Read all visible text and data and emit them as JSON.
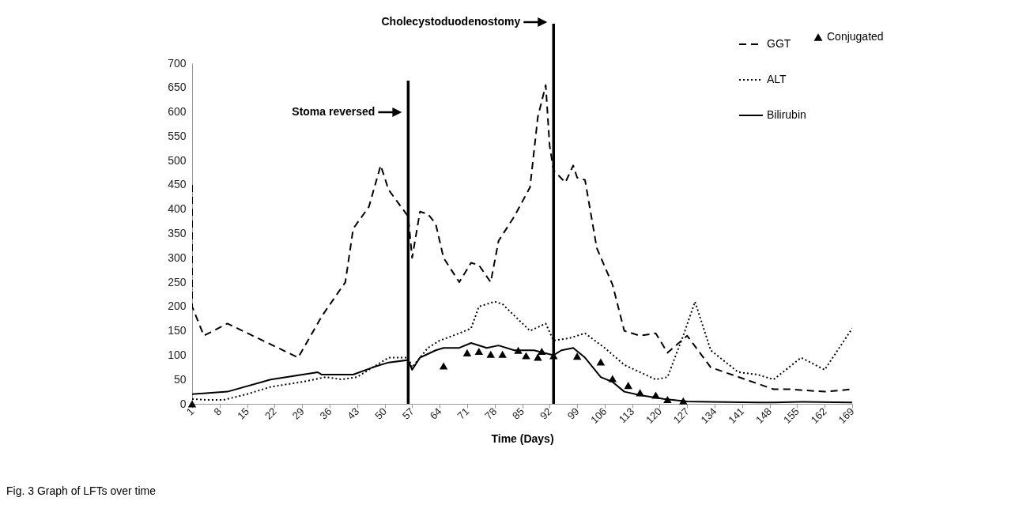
{
  "chart_data": {
    "type": "line",
    "xlabel": "Time (Days)",
    "xlim": [
      1,
      169
    ],
    "xticks": [
      1,
      8,
      15,
      22,
      29,
      36,
      43,
      50,
      57,
      64,
      71,
      78,
      85,
      92,
      99,
      106,
      113,
      120,
      127,
      134,
      141,
      148,
      155,
      162,
      169
    ],
    "ylim": [
      0,
      700
    ],
    "yticks": [
      0,
      50,
      100,
      150,
      200,
      250,
      300,
      350,
      400,
      450,
      500,
      550,
      600,
      650,
      700
    ],
    "grid": false,
    "legend": "top right",
    "series": [
      {
        "name": "GGT",
        "color": "#000000",
        "line_style": "dashed",
        "marker": "none",
        "x": [
          1,
          1,
          4,
          10,
          28,
          34,
          40,
          42,
          46,
          49,
          51,
          56,
          57,
          59,
          61,
          63,
          65,
          69,
          72,
          74,
          77,
          79,
          83,
          87,
          89,
          91,
          92,
          93,
          96,
          98,
          99,
          101,
          104,
          108,
          111,
          115,
          119,
          122,
          127,
          133,
          149,
          153,
          162,
          169
        ],
        "values": [
          450,
          200,
          140,
          165,
          95,
          180,
          250,
          360,
          405,
          490,
          440,
          385,
          300,
          395,
          390,
          370,
          300,
          250,
          290,
          285,
          250,
          335,
          385,
          445,
          590,
          655,
          530,
          480,
          455,
          490,
          465,
          460,
          320,
          245,
          150,
          140,
          145,
          105,
          140,
          75,
          30,
          30,
          25,
          30
        ]
      },
      {
        "name": "ALT",
        "color": "#000000",
        "line_style": "dotted",
        "marker": "none",
        "x": [
          1,
          5,
          9,
          15,
          21,
          29,
          35,
          39,
          43,
          47,
          51,
          56,
          57,
          61,
          64,
          69,
          72,
          74,
          78,
          80,
          87,
          91,
          93,
          97,
          101,
          106,
          111,
          119,
          122,
          126,
          129,
          133,
          140,
          145,
          149,
          156,
          162,
          169
        ],
        "values": [
          10,
          8,
          8,
          20,
          35,
          45,
          55,
          50,
          55,
          75,
          95,
          95,
          75,
          115,
          130,
          145,
          155,
          200,
          210,
          205,
          150,
          165,
          130,
          135,
          145,
          115,
          80,
          50,
          55,
          140,
          210,
          110,
          65,
          60,
          50,
          95,
          70,
          155
        ]
      },
      {
        "name": "Bilirubin",
        "color": "#000000",
        "line_style": "solid",
        "marker": "none",
        "x": [
          1,
          10,
          21,
          33,
          34,
          42,
          47,
          51,
          56,
          57,
          59,
          63,
          65,
          69,
          72,
          76,
          79,
          83,
          88,
          93,
          95,
          98,
          101,
          105,
          108,
          111,
          115,
          121,
          127,
          133,
          145,
          149,
          156,
          169
        ],
        "values": [
          20,
          25,
          50,
          65,
          60,
          60,
          75,
          85,
          90,
          70,
          95,
          110,
          115,
          115,
          125,
          115,
          120,
          110,
          110,
          100,
          110,
          115,
          95,
          55,
          45,
          25,
          18,
          10,
          5,
          4,
          3,
          3,
          4,
          3
        ]
      },
      {
        "name": "Conjugated",
        "type": "scatter",
        "color": "#000000",
        "marker": "triangle",
        "x": [
          1,
          65,
          71,
          74,
          77,
          80,
          84,
          86,
          89,
          90,
          93,
          99,
          105,
          108,
          112,
          115,
          119,
          122,
          126
        ],
        "values": [
          0,
          78,
          105,
          108,
          102,
          102,
          110,
          99,
          96,
          108,
          99,
          98,
          86,
          52,
          38,
          23,
          18,
          9,
          6
        ]
      }
    ],
    "ref_lines": [
      {
        "axis": "x",
        "value": 56,
        "label": "Stoma reversed"
      },
      {
        "axis": "x",
        "value": 93,
        "label": "Cholecystoduodenostomy"
      }
    ],
    "annotations": [
      "Fig. 3 Graph of LFTs over time"
    ]
  }
}
